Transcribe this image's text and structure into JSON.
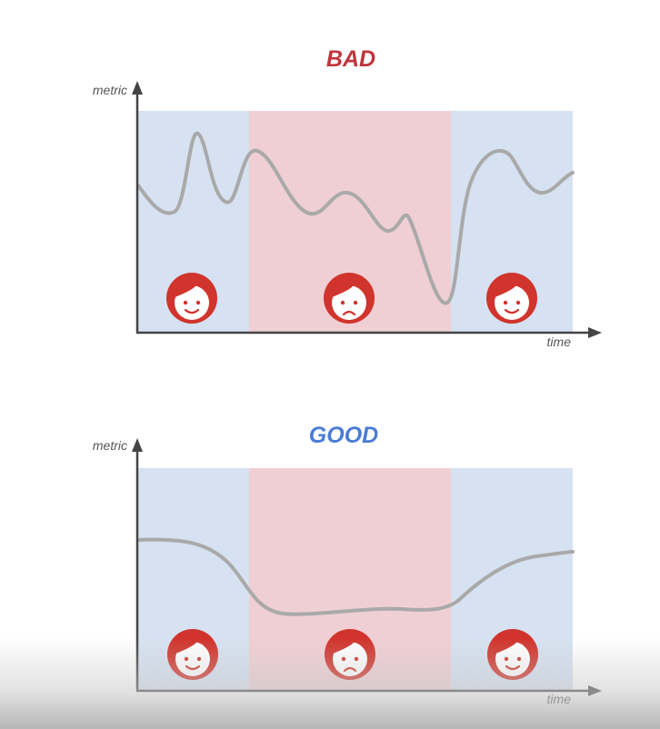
{
  "colors": {
    "good_bg": "#d6e2f1",
    "bad_bg": "#f0cfd4",
    "line": "#a9a9a9",
    "face": "#d0342c",
    "axis": "#444444",
    "bad_title": "#c0353d",
    "good_title": "#4a7cd6"
  },
  "panels": [
    {
      "title": "BAD",
      "y_label": "metric",
      "x_label": "time",
      "regions": [
        "good",
        "bad",
        "good"
      ],
      "faces": [
        "smiling-face-icon",
        "sad-face-icon",
        "smiling-face-icon"
      ],
      "curve_shape": "erratic"
    },
    {
      "title": "GOOD",
      "y_label": "metric",
      "x_label": "time",
      "regions": [
        "good",
        "bad",
        "good"
      ],
      "faces": [
        "smiling-face-icon",
        "sad-face-icon",
        "smiling-face-icon"
      ],
      "curve_shape": "smooth dip"
    }
  ]
}
